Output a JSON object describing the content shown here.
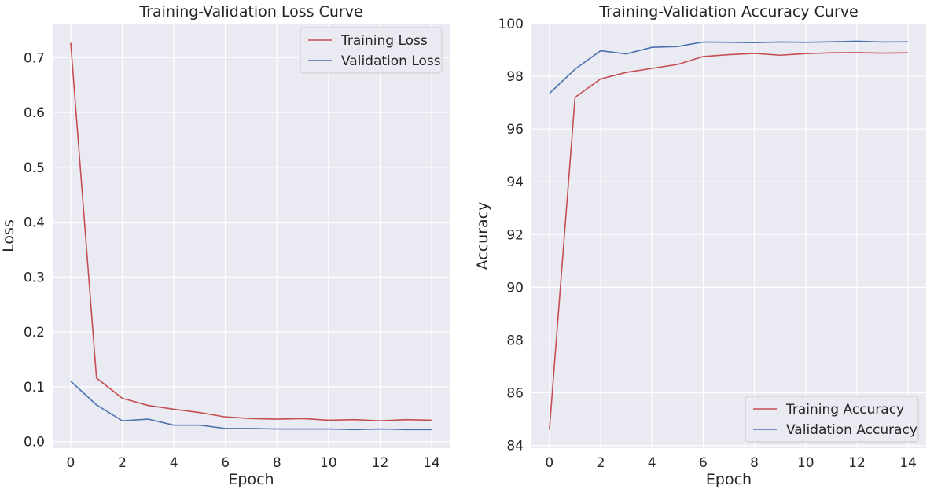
{
  "chart_data": [
    {
      "type": "line",
      "title": "Training-Validation Loss Curve",
      "xlabel": "Epoch",
      "ylabel": "Loss",
      "xlim": [
        -0.7,
        14.7
      ],
      "ylim": [
        -0.012,
        0.762
      ],
      "xticks": [
        0,
        2,
        4,
        6,
        8,
        10,
        12,
        14
      ],
      "yticks": [
        0.0,
        0.1,
        0.2,
        0.3,
        0.4,
        0.5,
        0.6,
        0.7
      ],
      "ytick_labels": [
        "0.0",
        "0.1",
        "0.2",
        "0.3",
        "0.4",
        "0.5",
        "0.6",
        "0.7"
      ],
      "grid": true,
      "legend_position": "top-right",
      "x": [
        0,
        1,
        2,
        3,
        4,
        5,
        6,
        7,
        8,
        9,
        10,
        11,
        12,
        13,
        14
      ],
      "series": [
        {
          "name": "Training Loss",
          "color": "#c44e52",
          "values": [
            0.727,
            0.116,
            0.079,
            0.066,
            0.059,
            0.053,
            0.045,
            0.042,
            0.041,
            0.042,
            0.039,
            0.04,
            0.038,
            0.04,
            0.039
          ]
        },
        {
          "name": "Validation Loss",
          "color": "#4c72b0",
          "values": [
            0.11,
            0.067,
            0.038,
            0.041,
            0.03,
            0.03,
            0.024,
            0.024,
            0.023,
            0.023,
            0.023,
            0.022,
            0.023,
            0.022,
            0.022
          ]
        }
      ]
    },
    {
      "type": "line",
      "title": "Training-Validation Accuracy Curve",
      "xlabel": "Epoch",
      "ylabel": "Accuracy",
      "xlim": [
        -0.7,
        14.7
      ],
      "ylim": [
        83.9,
        100.0
      ],
      "xticks": [
        0,
        2,
        4,
        6,
        8,
        10,
        12,
        14
      ],
      "yticks": [
        84,
        86,
        88,
        90,
        92,
        94,
        96,
        98,
        100
      ],
      "ytick_labels": [
        "84",
        "86",
        "88",
        "90",
        "92",
        "94",
        "96",
        "98",
        "100"
      ],
      "grid": true,
      "legend_position": "bottom-right",
      "x": [
        0,
        1,
        2,
        3,
        4,
        5,
        6,
        7,
        8,
        9,
        10,
        11,
        12,
        13,
        14
      ],
      "series": [
        {
          "name": "Training Accuracy",
          "color": "#c44e52",
          "values": [
            84.6,
            97.2,
            97.9,
            98.15,
            98.3,
            98.45,
            98.75,
            98.82,
            98.87,
            98.8,
            98.86,
            98.89,
            98.9,
            98.88,
            98.89
          ]
        },
        {
          "name": "Validation Accuracy",
          "color": "#4c72b0",
          "values": [
            97.35,
            98.27,
            98.97,
            98.85,
            99.1,
            99.13,
            99.3,
            99.29,
            99.28,
            99.3,
            99.29,
            99.31,
            99.33,
            99.3,
            99.31
          ]
        }
      ]
    }
  ]
}
